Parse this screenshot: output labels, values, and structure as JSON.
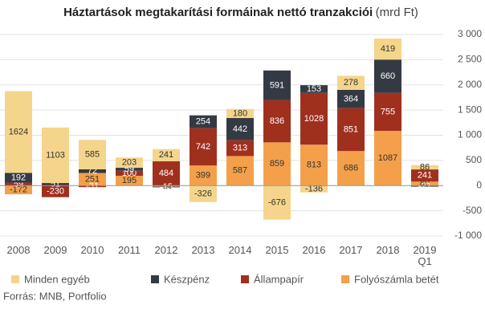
{
  "chart_data": {
    "type": "stacked-bar",
    "title": "Háztartások megtakarítási formáinak nettó tranzakciói",
    "subtitle": "(mrd Ft)",
    "source": "Forrás: MNB, Portfolio",
    "categories": [
      "2008",
      "2009",
      "2010",
      "2011",
      "2012",
      "2013",
      "2014",
      "2015",
      "2016",
      "2017",
      "2018",
      "2019 Q1"
    ],
    "series": [
      {
        "name": "Minden egyéb",
        "color": "#f5d58b",
        "text_color": "#333333",
        "values": [
          1624,
          1103,
          585,
          203,
          241,
          -326,
          180,
          -676,
          -136,
          278,
          419,
          86
        ]
      },
      {
        "name": "Készpénz",
        "color": "#343a44",
        "text_color": "#ffffff",
        "values": [
          192,
          51,
          72,
          59,
          -15,
          254,
          442,
          591,
          153,
          364,
          660,
          -21
        ]
      },
      {
        "name": "Állampapír",
        "color": "#a0301e",
        "text_color": "#ffffff",
        "values": [
          59,
          -230,
          -31,
          100,
          484,
          742,
          313,
          836,
          1028,
          851,
          755,
          241
        ]
      },
      {
        "name": "Folyószámla betét",
        "color": "#f4a04a",
        "text_color": "#333333",
        "values": [
          -172,
          null,
          251,
          195,
          -19,
          399,
          587,
          859,
          813,
          686,
          1087,
          80
        ]
      }
    ],
    "ylim": [
      -1000,
      3000
    ],
    "yticks": [
      {
        "value": -1000,
        "label": "-1 000"
      },
      {
        "value": -500,
        "label": "-500"
      },
      0,
      500,
      {
        "value": 1000,
        "label": "1 000"
      },
      {
        "value": 1500,
        "label": "1 500"
      },
      {
        "value": 2000,
        "label": "2 000"
      },
      {
        "value": 2500,
        "label": "2 500"
      },
      {
        "value": 3000,
        "label": "3 000"
      }
    ],
    "grid": true
  }
}
